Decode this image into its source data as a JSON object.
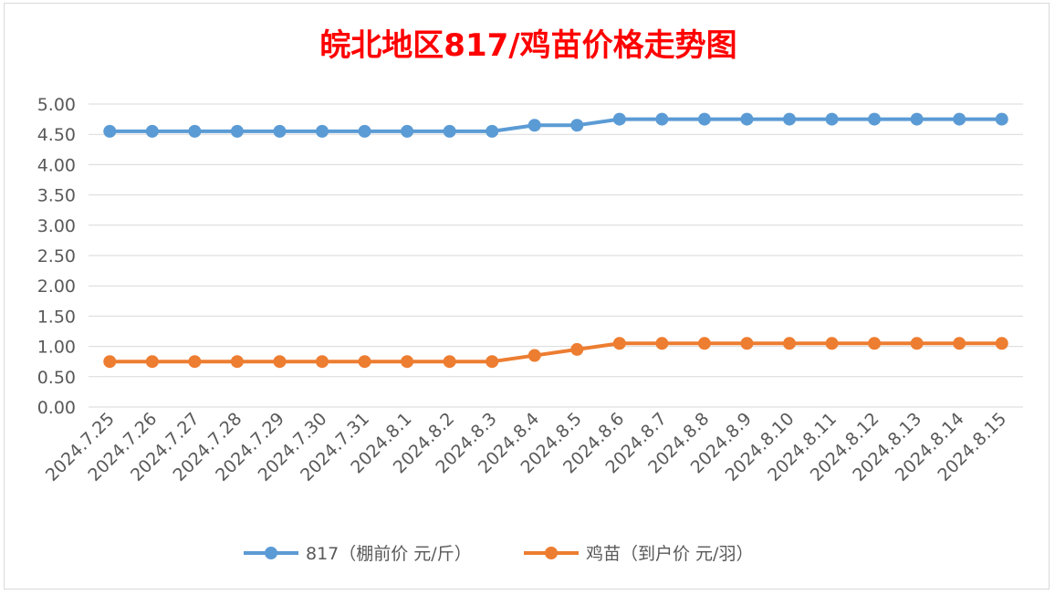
{
  "chart_data": {
    "type": "line",
    "title": "皖北地区817/鸡苗价格走势图",
    "categories": [
      "2024.7.25",
      "2024.7.26",
      "2024.7.27",
      "2024.7.28",
      "2024.7.29",
      "2024.7.30",
      "2024.7.31",
      "2024.8.1",
      "2024.8.2",
      "2024.8.3",
      "2024.8.4",
      "2024.8.5",
      "2024.8.6",
      "2024.8.7",
      "2024.8.8",
      "2024.8.9",
      "2024.8.10",
      "2024.8.11",
      "2024.8.12",
      "2024.8.13",
      "2024.8.14",
      "2024.8.15"
    ],
    "series": [
      {
        "name": "817（棚前价 元/斤）",
        "color": "#5b9bd5",
        "values": [
          4.55,
          4.55,
          4.55,
          4.55,
          4.55,
          4.55,
          4.55,
          4.55,
          4.55,
          4.55,
          4.65,
          4.65,
          4.75,
          4.75,
          4.75,
          4.75,
          4.75,
          4.75,
          4.75,
          4.75,
          4.75,
          4.75
        ]
      },
      {
        "name": "鸡苗（到户价 元/羽）",
        "color": "#ed7d31",
        "values": [
          0.75,
          0.75,
          0.75,
          0.75,
          0.75,
          0.75,
          0.75,
          0.75,
          0.75,
          0.75,
          0.85,
          0.95,
          1.05,
          1.05,
          1.05,
          1.05,
          1.05,
          1.05,
          1.05,
          1.05,
          1.05,
          1.05
        ]
      }
    ],
    "y_ticks": [
      "0.00",
      "0.50",
      "1.00",
      "1.50",
      "2.00",
      "2.50",
      "3.00",
      "3.50",
      "4.00",
      "4.50",
      "5.00"
    ],
    "ylim": [
      0,
      5
    ],
    "grid": true,
    "legend_position": "bottom"
  }
}
